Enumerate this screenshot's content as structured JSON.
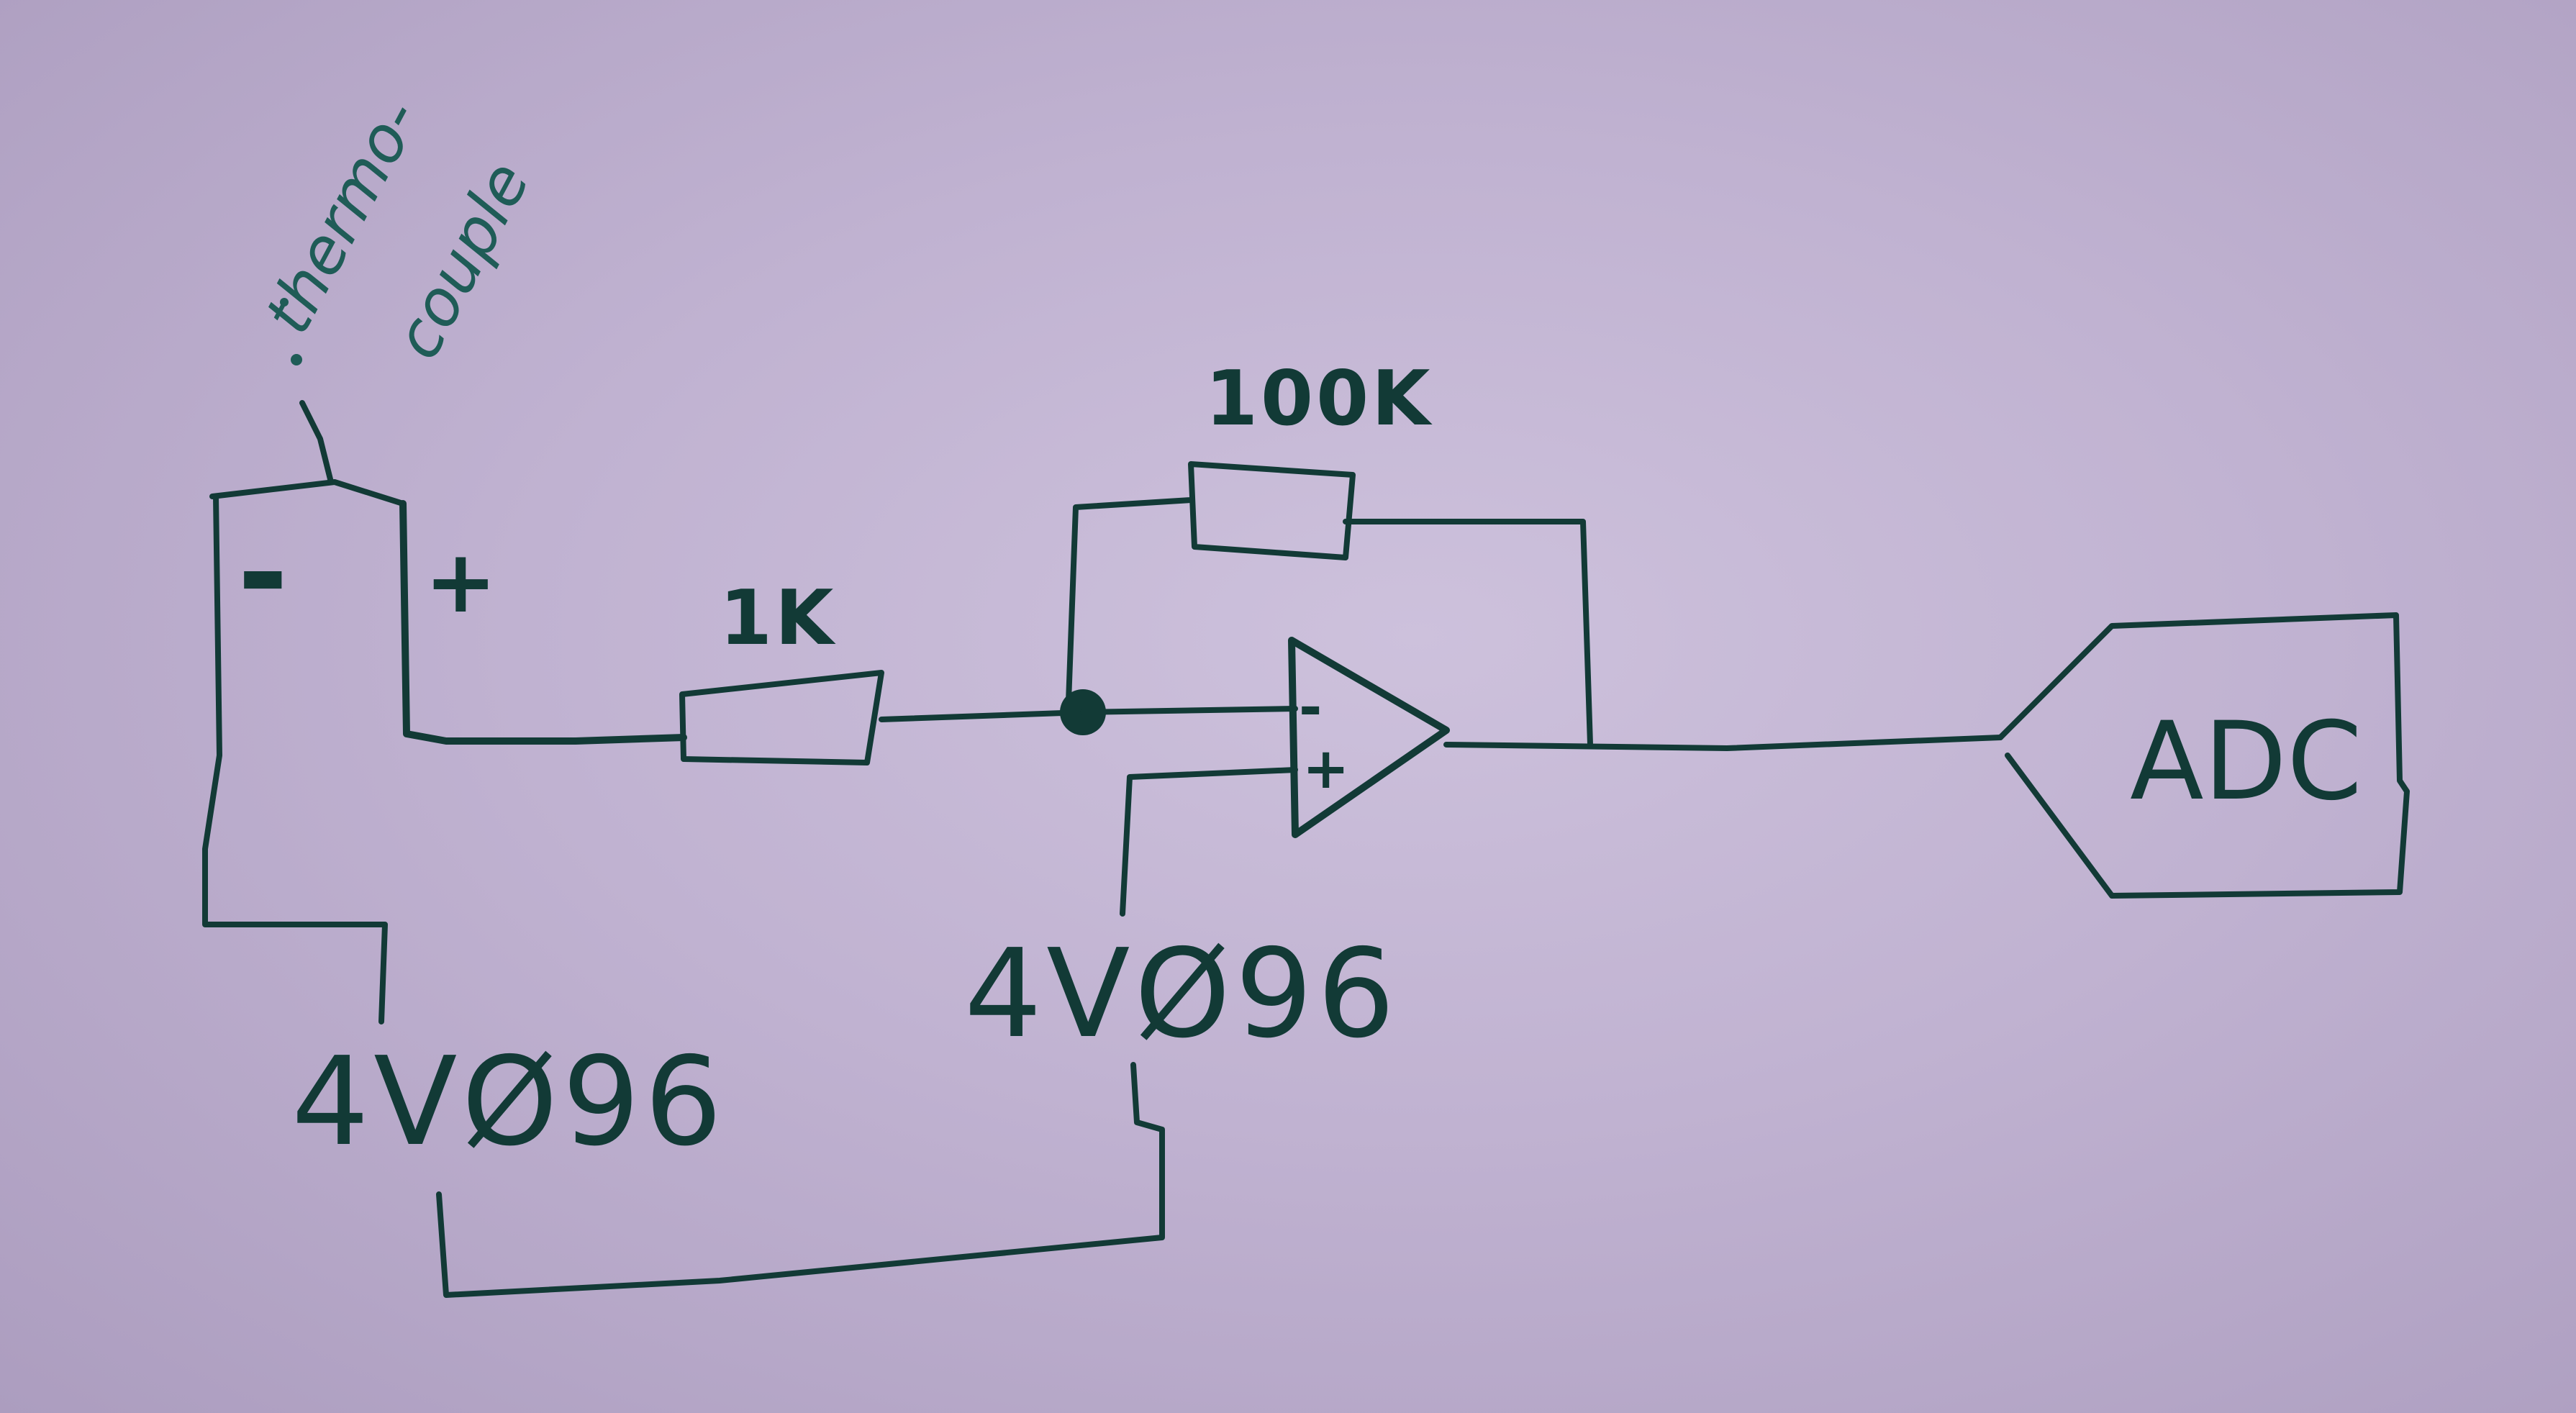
{
  "labels": {
    "thermocouple": "thermo-",
    "thermocouple_2": "couple",
    "minus": "-",
    "plus": "+",
    "r_in": "1K",
    "r_fb": "100K",
    "opamp_minus": "-",
    "opamp_plus": "+",
    "ref_left": "4VØ96",
    "ref_mid": "4VØ96",
    "adc": "ADC"
  },
  "colors": {
    "paper": "#c7bad7",
    "ink": "#123a36"
  }
}
